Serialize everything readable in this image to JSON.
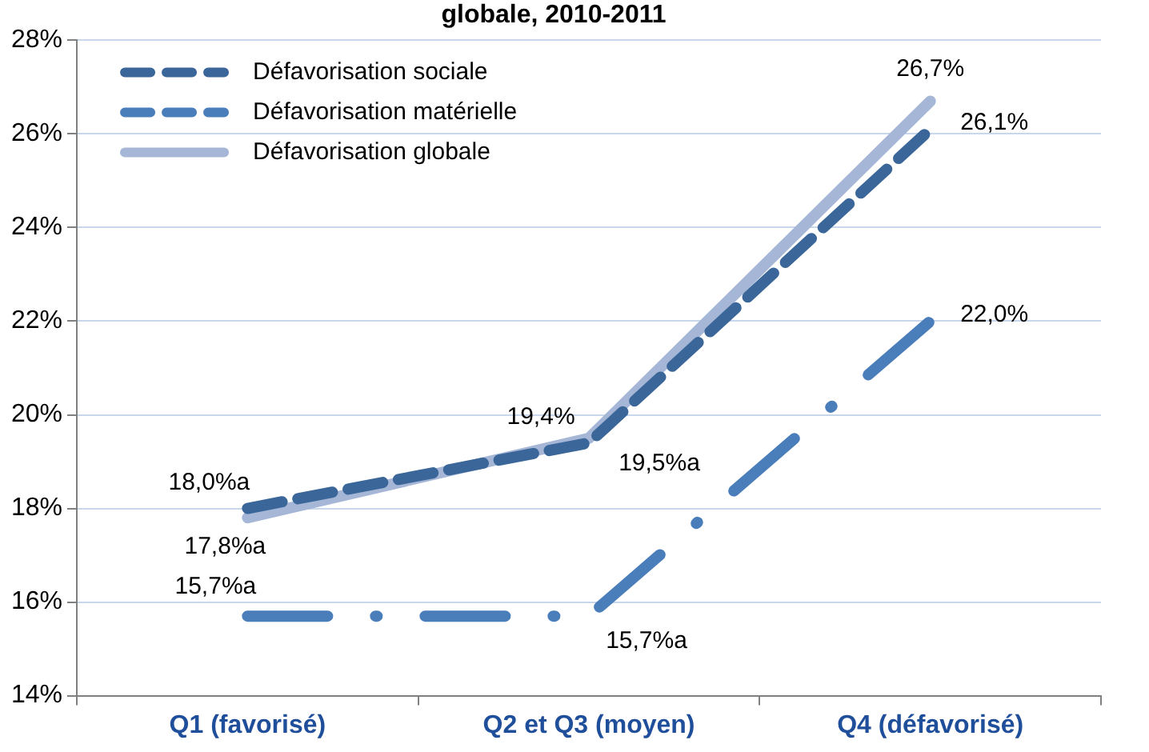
{
  "chart_data": {
    "type": "line",
    "title": "globale, 2010-2011",
    "categories": [
      "Q1 (favorisé)",
      "Q2 et Q3 (moyen)",
      "Q4 (défavorisé)"
    ],
    "series": [
      {
        "name": "Défavorisation sociale",
        "color": "#3a6699",
        "line_style": "dashed",
        "values": [
          18.0,
          19.4,
          26.1
        ],
        "value_labels": [
          "18,0%a",
          "19,4%",
          "26,1%"
        ]
      },
      {
        "name": "Défavorisation matérielle",
        "color": "#4a7ebb",
        "line_style": "dashdot",
        "values": [
          15.7,
          15.7,
          22.0
        ],
        "value_labels": [
          "15,7%a",
          "15,7%a",
          "22,0%"
        ]
      },
      {
        "name": "Défavorisation globale",
        "color": "#a5b6d6",
        "line_style": "solid",
        "values": [
          17.8,
          19.5,
          26.7
        ],
        "value_labels": [
          "17,8%a",
          "19,5%a",
          "26,7%"
        ]
      }
    ],
    "ylim": [
      14,
      28
    ],
    "yticks": [
      {
        "value": 14,
        "label": "14%"
      },
      {
        "value": 16,
        "label": "16%"
      },
      {
        "value": 18,
        "label": "18%"
      },
      {
        "value": 20,
        "label": "20%"
      },
      {
        "value": 22,
        "label": "22%"
      },
      {
        "value": 24,
        "label": "24%"
      },
      {
        "value": 26,
        "label": "26%"
      },
      {
        "value": 28,
        "label": "28%"
      }
    ],
    "grid": "y",
    "legend": "top left",
    "marker": "none"
  }
}
